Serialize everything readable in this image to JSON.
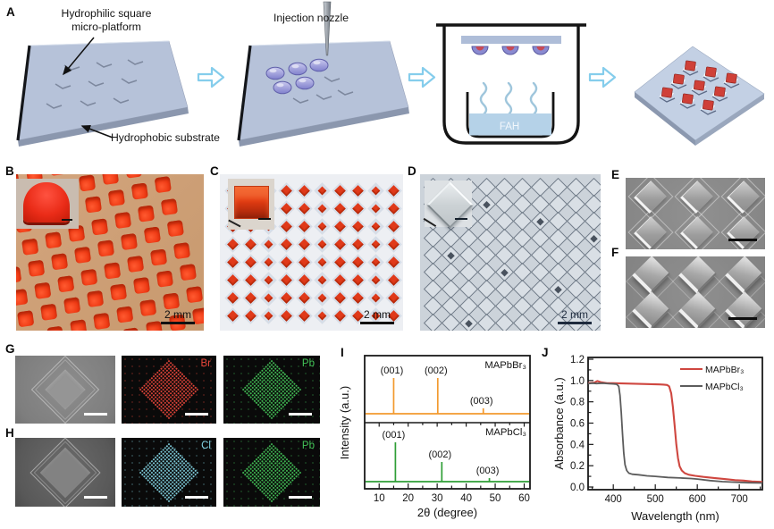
{
  "figure": {
    "background": "#ffffff"
  },
  "panels": {
    "A": {
      "label": "A",
      "captions": {
        "platform": "Hydrophilic square\nmicro-platform",
        "nozzle": "Injection nozzle",
        "substrate": "Hydrophobic substrate",
        "bath": "FAH"
      }
    },
    "B": {
      "label": "B",
      "scale_label": "2 mm",
      "grid": {
        "rows": 9,
        "cols": 9,
        "rotation_deg": -16
      }
    },
    "C": {
      "label": "C",
      "scale_label": "2 mm",
      "grid": {
        "rows": 8,
        "cols": 10
      }
    },
    "D": {
      "label": "D",
      "scale_label": "2 mm",
      "grid": {
        "rows": 9,
        "cols": 10
      }
    },
    "E": {
      "label": "E",
      "grid": {
        "rows": 2,
        "cols": 3
      }
    },
    "F": {
      "label": "F",
      "grid": {
        "rows": 2,
        "cols": 3
      }
    },
    "G": {
      "label": "G",
      "eds": [
        {
          "element": "Br",
          "color": "#e8463a"
        },
        {
          "element": "Pb",
          "color": "#43c257"
        }
      ]
    },
    "H": {
      "label": "H",
      "eds": [
        {
          "element": "Cl",
          "color": "#83d4e3"
        },
        {
          "element": "Pb",
          "color": "#43c257"
        }
      ]
    },
    "I": {
      "label": "I"
    },
    "J": {
      "label": "J"
    }
  },
  "chart_data": [
    {
      "type": "line",
      "name": "xrd-patterns",
      "xlabel": "2θ (degree)",
      "ylabel": "Intensity (a.u.)",
      "xlim": [
        5,
        62
      ],
      "xticks": [
        10,
        20,
        30,
        40,
        50,
        60
      ],
      "minor_tick_step": 5,
      "series": [
        {
          "name": "MAPbBr₃",
          "color": "#f2992e",
          "peaks": [
            {
              "hkl": "(001)",
              "two_theta": 15.0,
              "intensity": 1.0
            },
            {
              "hkl": "(002)",
              "two_theta": 30.2,
              "intensity": 1.0
            },
            {
              "hkl": "(003)",
              "two_theta": 45.9,
              "intensity": 0.15
            }
          ]
        },
        {
          "name": "MAPbCl₃",
          "color": "#2f9e36",
          "peaks": [
            {
              "hkl": "(001)",
              "two_theta": 15.6,
              "intensity": 1.0
            },
            {
              "hkl": "(002)",
              "two_theta": 31.6,
              "intensity": 0.5
            },
            {
              "hkl": "(003)",
              "two_theta": 48.0,
              "intensity": 0.09
            }
          ]
        }
      ]
    },
    {
      "type": "line",
      "name": "absorbance-spectra",
      "xlabel": "Wavelength (nm)",
      "ylabel": "Absorbance (a.u.)",
      "xlim": [
        340,
        755
      ],
      "ylim": [
        0,
        1.2
      ],
      "xticks": [
        400,
        500,
        600,
        700
      ],
      "yticks": [
        "0.0",
        "0.2",
        "0.4",
        "0.6",
        "0.8",
        "1.0",
        "1.2"
      ],
      "legend_position": "top-right",
      "series": [
        {
          "name": "MAPbBr₃",
          "color": "#cf4740",
          "points": [
            [
              340,
              0.975
            ],
            [
              355,
              0.98
            ],
            [
              362,
              0.995
            ],
            [
              370,
              0.985
            ],
            [
              385,
              0.975
            ],
            [
              400,
              0.975
            ],
            [
              430,
              0.972
            ],
            [
              460,
              0.968
            ],
            [
              490,
              0.966
            ],
            [
              510,
              0.963
            ],
            [
              520,
              0.962
            ],
            [
              528,
              0.958
            ],
            [
              533,
              0.945
            ],
            [
              538,
              0.88
            ],
            [
              542,
              0.75
            ],
            [
              546,
              0.58
            ],
            [
              550,
              0.4
            ],
            [
              554,
              0.27
            ],
            [
              558,
              0.195
            ],
            [
              563,
              0.155
            ],
            [
              570,
              0.13
            ],
            [
              580,
              0.115
            ],
            [
              595,
              0.105
            ],
            [
              615,
              0.095
            ],
            [
              640,
              0.085
            ],
            [
              665,
              0.075
            ],
            [
              690,
              0.065
            ],
            [
              710,
              0.06
            ],
            [
              730,
              0.052
            ],
            [
              755,
              0.048
            ]
          ]
        },
        {
          "name": "MAPbCl₃",
          "color": "#5c5c5c",
          "points": [
            [
              340,
              0.97
            ],
            [
              350,
              0.975
            ],
            [
              360,
              0.972
            ],
            [
              375,
              0.975
            ],
            [
              390,
              0.97
            ],
            [
              400,
              0.968
            ],
            [
              408,
              0.965
            ],
            [
              413,
              0.945
            ],
            [
              416,
              0.86
            ],
            [
              419,
              0.7
            ],
            [
              422,
              0.5
            ],
            [
              425,
              0.32
            ],
            [
              428,
              0.21
            ],
            [
              432,
              0.155
            ],
            [
              437,
              0.13
            ],
            [
              445,
              0.12
            ],
            [
              460,
              0.115
            ],
            [
              480,
              0.105
            ],
            [
              500,
              0.1
            ],
            [
              530,
              0.09
            ],
            [
              560,
              0.085
            ],
            [
              585,
              0.08
            ],
            [
              600,
              0.075
            ],
            [
              630,
              0.06
            ],
            [
              660,
              0.05
            ],
            [
              690,
              0.045
            ],
            [
              720,
              0.04
            ],
            [
              755,
              0.038
            ]
          ]
        }
      ]
    }
  ]
}
